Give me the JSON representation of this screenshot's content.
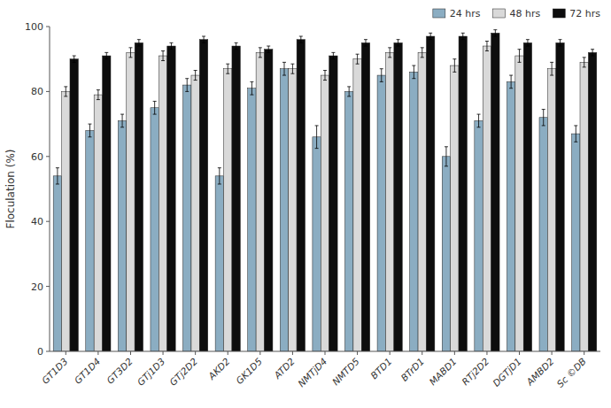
{
  "chart_data": {
    "type": "bar",
    "categories": [
      "GT1D3",
      "GT1D4",
      "GT3D2",
      "GTj1D3",
      "GTj2D2",
      "AKD2",
      "GK1D5",
      "ATD2",
      "NMTjD4",
      "NMTD5",
      "BTD1",
      "BTrD1",
      "MABD1",
      "RTj2D2",
      "DGTjD1",
      "AMBD2",
      "Sc ©DB"
    ],
    "series": [
      {
        "name": "24 hrs",
        "color": "#8BADC2",
        "values": [
          54,
          68,
          71,
          75,
          82,
          54,
          81,
          87,
          66,
          80,
          85,
          86,
          60,
          71,
          83,
          72,
          67
        ],
        "errors": [
          2.5,
          2.0,
          2.0,
          2.0,
          2.0,
          2.5,
          2.0,
          2.0,
          3.5,
          1.5,
          2.0,
          2.0,
          3.0,
          2.0,
          2.0,
          2.5,
          2.5
        ]
      },
      {
        "name": "48 hrs",
        "color": "#D9D9D9",
        "values": [
          80,
          79,
          92,
          91,
          85,
          87,
          92,
          87,
          85,
          90,
          92,
          92,
          88,
          94,
          91,
          87,
          89
        ],
        "errors": [
          1.5,
          1.5,
          1.5,
          1.5,
          1.5,
          1.5,
          1.5,
          1.5,
          1.5,
          1.5,
          1.5,
          1.5,
          2.0,
          1.5,
          2.0,
          2.0,
          1.5
        ]
      },
      {
        "name": "72 hrs",
        "color": "#0D0D0D",
        "values": [
          90,
          91,
          95,
          94,
          96,
          94,
          93,
          96,
          91,
          95,
          95,
          97,
          97,
          98,
          95,
          95,
          92
        ],
        "errors": [
          1.0,
          1.0,
          1.0,
          1.0,
          1.0,
          1.0,
          1.0,
          1.0,
          1.0,
          1.0,
          1.0,
          1.0,
          1.0,
          1.0,
          1.0,
          1.0,
          1.0
        ]
      }
    ],
    "y_label": "Floculation (%)",
    "ylim": [
      0,
      100
    ],
    "yticks": [
      0,
      20,
      40,
      60,
      80,
      100
    ],
    "grid": false,
    "legend": "upper right"
  }
}
